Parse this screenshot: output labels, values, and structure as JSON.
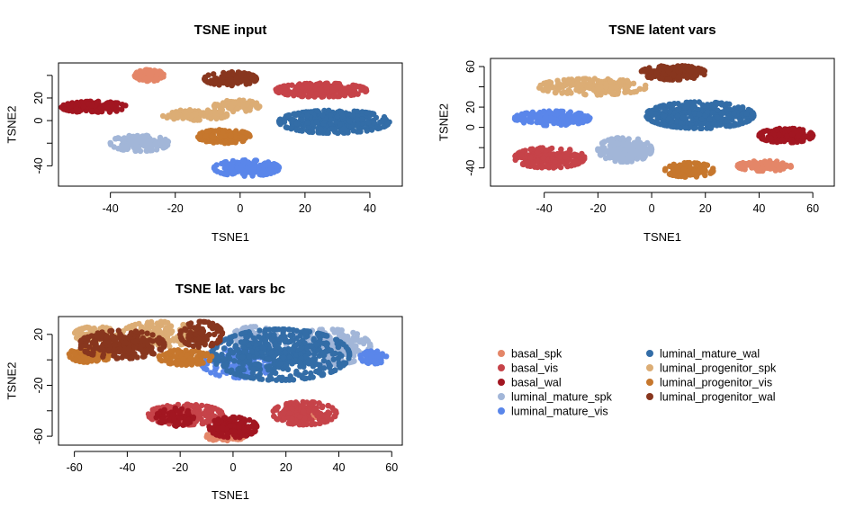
{
  "colors": {
    "basal_spk": "#E48668",
    "basal_vis": "#C64349",
    "basal_wal": "#A21621",
    "luminal_mature_spk": "#A2B6D8",
    "luminal_mature_vis": "#5A86EA",
    "luminal_mature_wal": "#336DA7",
    "luminal_progenitor_spk": "#DCAD75",
    "luminal_progenitor_vis": "#C6772D",
    "luminal_progenitor_wal": "#88361E"
  },
  "legend": {
    "entries": [
      {
        "name": "basal_spk",
        "color": "#E48668"
      },
      {
        "name": "basal_vis",
        "color": "#C64349"
      },
      {
        "name": "basal_wal",
        "color": "#A21621"
      },
      {
        "name": "luminal_mature_spk",
        "color": "#A2B6D8"
      },
      {
        "name": "luminal_mature_vis",
        "color": "#5A86EA"
      },
      {
        "name": "luminal_mature_wal",
        "color": "#336DA7"
      },
      {
        "name": "luminal_progenitor_spk",
        "color": "#DCAD75"
      },
      {
        "name": "luminal_progenitor_vis",
        "color": "#C6772D"
      },
      {
        "name": "luminal_progenitor_wal",
        "color": "#88361E"
      }
    ]
  },
  "chart_data": [
    {
      "type": "scatter",
      "title": "TSNE input",
      "xlabel": "TSNE1",
      "ylabel": "TSNE2",
      "xlim": [
        -56,
        50
      ],
      "ylim": [
        -58,
        51
      ],
      "xticks": [
        -40,
        -20,
        0,
        20,
        40
      ],
      "yticks": [
        -40,
        -20,
        0,
        20,
        40
      ],
      "yticklabels": [
        "-40",
        "",
        "0",
        "20",
        ""
      ],
      "legend": "none",
      "grid": false,
      "clusters": [
        {
          "group": "basal_spk",
          "cx": -28,
          "cy": 40,
          "rx": 4.5,
          "ry": 5,
          "n": 90
        },
        {
          "group": "basal_vis",
          "cx": 25,
          "cy": 27,
          "rx": 14,
          "ry": 6,
          "n": 240
        },
        {
          "group": "basal_wal",
          "cx": -45,
          "cy": 12,
          "rx": 10,
          "ry": 5,
          "n": 160
        },
        {
          "group": "luminal_mature_spk",
          "cx": -31,
          "cy": -20,
          "rx": 9,
          "ry": 7,
          "n": 150
        },
        {
          "group": "luminal_mature_vis",
          "cx": 2,
          "cy": -42,
          "rx": 10,
          "ry": 7,
          "n": 170
        },
        {
          "group": "luminal_mature_wal",
          "cx": 29,
          "cy": -1,
          "rx": 17,
          "ry": 10,
          "n": 340
        },
        {
          "group": "luminal_progenitor_spk",
          "cx": -14,
          "cy": 5,
          "rx": 10,
          "ry": 4.5,
          "n": 110
        },
        {
          "group": "luminal_progenitor_spk",
          "cx": -1,
          "cy": 13,
          "rx": 7,
          "ry": 5,
          "n": 90
        },
        {
          "group": "luminal_progenitor_vis",
          "cx": -5,
          "cy": -14,
          "rx": 8,
          "ry": 6,
          "n": 120
        },
        {
          "group": "luminal_progenitor_wal",
          "cx": -3,
          "cy": 37,
          "rx": 8,
          "ry": 6,
          "n": 130
        }
      ]
    },
    {
      "type": "scatter",
      "title": "TSNE latent vars",
      "xlabel": "TSNE1",
      "ylabel": "TSNE2",
      "xlim": [
        -60,
        68
      ],
      "ylim": [
        -58,
        68
      ],
      "xticks": [
        -40,
        -20,
        0,
        20,
        40,
        60
      ],
      "yticks": [
        -40,
        -20,
        0,
        20,
        40,
        60
      ],
      "yticklabels": [
        "-40",
        "",
        "0",
        "20",
        "",
        "60"
      ],
      "legend": "none",
      "grid": false,
      "clusters": [
        {
          "group": "basal_spk",
          "cx": 42,
          "cy": -38,
          "rx": 10,
          "ry": 5,
          "n": 110
        },
        {
          "group": "basal_vis",
          "cx": -38,
          "cy": -30,
          "rx": 13,
          "ry": 10,
          "n": 230
        },
        {
          "group": "basal_wal",
          "cx": 50,
          "cy": -8,
          "rx": 10,
          "ry": 7,
          "n": 140
        },
        {
          "group": "luminal_mature_spk",
          "cx": -10,
          "cy": -22,
          "rx": 10,
          "ry": 12,
          "n": 190
        },
        {
          "group": "luminal_mature_vis",
          "cx": -37,
          "cy": 9,
          "rx": 14,
          "ry": 7,
          "n": 170
        },
        {
          "group": "luminal_mature_wal",
          "cx": 18,
          "cy": 12,
          "rx": 20,
          "ry": 13,
          "n": 360
        },
        {
          "group": "luminal_progenitor_spk",
          "cx": -22,
          "cy": 40,
          "rx": 20,
          "ry": 8,
          "n": 200
        },
        {
          "group": "luminal_progenitor_vis",
          "cx": 14,
          "cy": -42,
          "rx": 9,
          "ry": 7,
          "n": 110
        },
        {
          "group": "luminal_progenitor_wal",
          "cx": 8,
          "cy": 54,
          "rx": 12,
          "ry": 7,
          "n": 150
        }
      ]
    },
    {
      "type": "scatter",
      "title": "TSNE lat. vars bc",
      "xlabel": "TSNE1",
      "ylabel": "TSNE2",
      "xlim": [
        -66,
        64
      ],
      "ylim": [
        -67,
        34
      ],
      "xticks": [
        -60,
        -40,
        -20,
        0,
        20,
        40,
        60
      ],
      "yticks": [
        -60,
        -40,
        -20,
        0,
        20
      ],
      "yticklabels": [
        "-60",
        "",
        "-20",
        "",
        "20"
      ],
      "legend": "none",
      "grid": false,
      "clusters": [
        {
          "group": "basal_spk",
          "cx": -3,
          "cy": -60,
          "rx": 7,
          "ry": 4,
          "n": 70
        },
        {
          "group": "basal_spk",
          "cx": 27,
          "cy": -43,
          "rx": 6,
          "ry": 6,
          "n": 50
        },
        {
          "group": "basal_vis",
          "cx": -18,
          "cy": -43,
          "rx": 14,
          "ry": 8,
          "n": 170
        },
        {
          "group": "basal_vis",
          "cx": 27,
          "cy": -42,
          "rx": 12,
          "ry": 9,
          "n": 170
        },
        {
          "group": "basal_wal",
          "cx": 0,
          "cy": -53,
          "rx": 9,
          "ry": 8,
          "n": 140
        },
        {
          "group": "basal_wal",
          "cx": -22,
          "cy": -45,
          "rx": 7,
          "ry": 7,
          "n": 70
        },
        {
          "group": "luminal_mature_spk",
          "cx": 36,
          "cy": 10,
          "rx": 16,
          "ry": 14,
          "n": 230
        },
        {
          "group": "luminal_mature_spk",
          "cx": 8,
          "cy": 16,
          "rx": 9,
          "ry": 10,
          "n": 110
        },
        {
          "group": "luminal_mature_vis",
          "cx": 53,
          "cy": 2,
          "rx": 5,
          "ry": 5,
          "n": 60
        },
        {
          "group": "luminal_mature_vis",
          "cx": 2,
          "cy": -2,
          "rx": 14,
          "ry": 12,
          "n": 130
        },
        {
          "group": "luminal_mature_wal",
          "cx": 18,
          "cy": 4,
          "rx": 26,
          "ry": 20,
          "n": 520
        },
        {
          "group": "luminal_progenitor_spk",
          "cx": -28,
          "cy": 20,
          "rx": 14,
          "ry": 10,
          "n": 180
        },
        {
          "group": "luminal_progenitor_spk",
          "cx": -52,
          "cy": 20,
          "rx": 8,
          "ry": 6,
          "n": 70
        },
        {
          "group": "luminal_progenitor_vis",
          "cx": -54,
          "cy": 4,
          "rx": 8,
          "ry": 6,
          "n": 100
        },
        {
          "group": "luminal_progenitor_vis",
          "cx": -18,
          "cy": 2,
          "rx": 10,
          "ry": 6,
          "n": 90
        },
        {
          "group": "luminal_progenitor_wal",
          "cx": -42,
          "cy": 12,
          "rx": 16,
          "ry": 11,
          "n": 230
        },
        {
          "group": "luminal_progenitor_wal",
          "cx": -12,
          "cy": 20,
          "rx": 8,
          "ry": 10,
          "n": 100
        }
      ]
    }
  ]
}
